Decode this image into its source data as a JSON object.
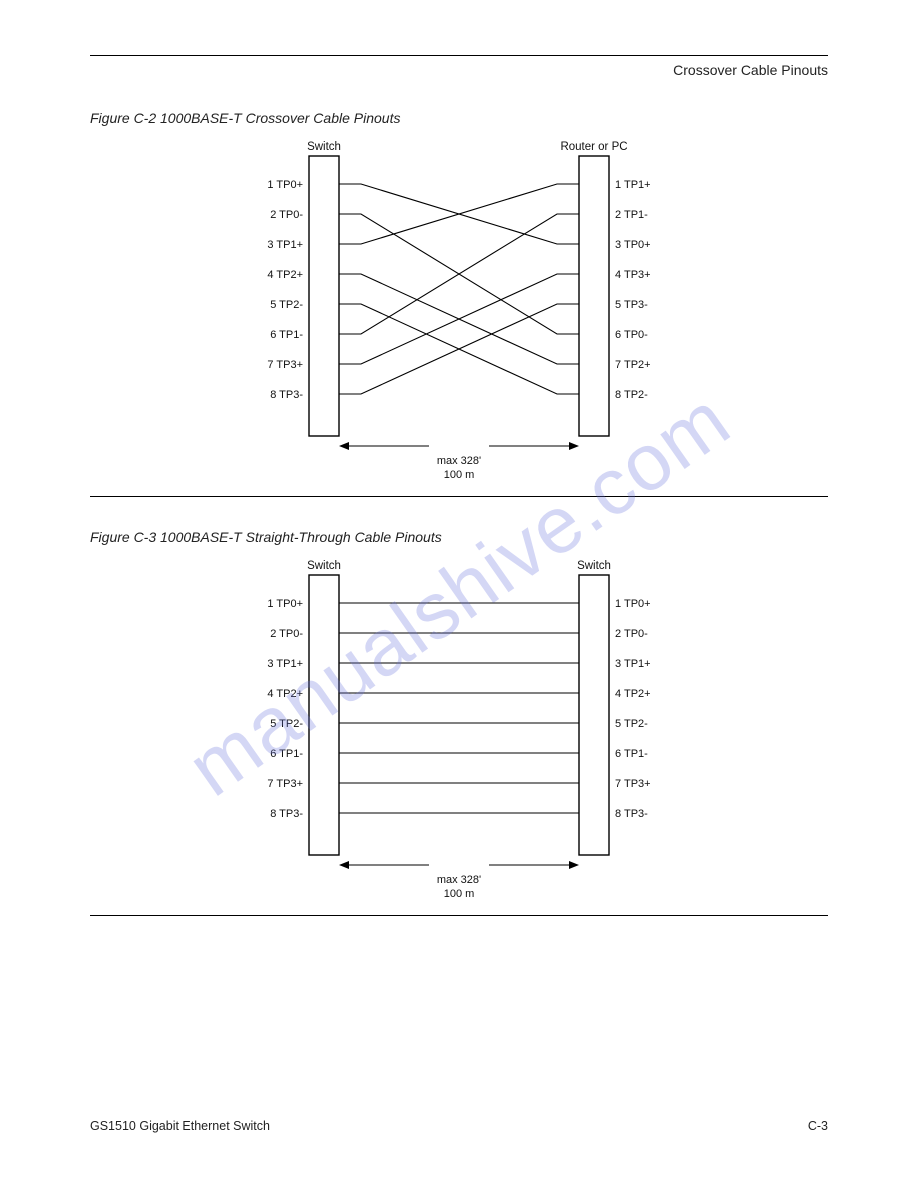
{
  "header": {
    "right": "Crossover Cable Pinouts"
  },
  "figures": [
    {
      "title": "Figure C-2    1000BASE-T Crossover Cable Pinouts",
      "type": "crossover",
      "left_side_label": "Switch",
      "right_side_label": "Router or PC",
      "length_label_left": "max 328'",
      "length_label_right": "100 m",
      "pins_left": [
        {
          "n": 1,
          "label": "TP0+"
        },
        {
          "n": 2,
          "label": "TP0-"
        },
        {
          "n": 3,
          "label": "TP1+"
        },
        {
          "n": 4,
          "label": "TP2+"
        },
        {
          "n": 5,
          "label": "TP2-"
        },
        {
          "n": 6,
          "label": "TP1-"
        },
        {
          "n": 7,
          "label": "TP3+"
        },
        {
          "n": 8,
          "label": "TP3-"
        }
      ],
      "pins_right": [
        {
          "n": 1,
          "label": "TP1+"
        },
        {
          "n": 2,
          "label": "TP1-"
        },
        {
          "n": 3,
          "label": "TP0+"
        },
        {
          "n": 4,
          "label": "TP3+"
        },
        {
          "n": 5,
          "label": "TP3-"
        },
        {
          "n": 6,
          "label": "TP0-"
        },
        {
          "n": 7,
          "label": "TP2+"
        },
        {
          "n": 8,
          "label": "TP2-"
        }
      ],
      "connections": [
        [
          1,
          3
        ],
        [
          2,
          6
        ],
        [
          3,
          1
        ],
        [
          4,
          7
        ],
        [
          5,
          8
        ],
        [
          6,
          2
        ],
        [
          7,
          4
        ],
        [
          8,
          5
        ]
      ],
      "stroke": "#000000",
      "connector_fill": "#ffffff",
      "connector_stroke": "#000000",
      "block_w": 30,
      "block_h": 280,
      "gap": 240,
      "pin_spacing": 30,
      "line_width": 1.1
    },
    {
      "title": "Figure C-3    1000BASE-T Straight-Through Cable Pinouts",
      "type": "straight",
      "left_side_label": "Switch",
      "right_side_label": "Switch",
      "length_label_left": "max 328'",
      "length_label_right": "100 m",
      "pins_left": [
        {
          "n": 1,
          "label": "TP0+"
        },
        {
          "n": 2,
          "label": "TP0-"
        },
        {
          "n": 3,
          "label": "TP1+"
        },
        {
          "n": 4,
          "label": "TP2+"
        },
        {
          "n": 5,
          "label": "TP2-"
        },
        {
          "n": 6,
          "label": "TP1-"
        },
        {
          "n": 7,
          "label": "TP3+"
        },
        {
          "n": 8,
          "label": "TP3-"
        }
      ],
      "pins_right": [
        {
          "n": 1,
          "label": "TP0+"
        },
        {
          "n": 2,
          "label": "TP0-"
        },
        {
          "n": 3,
          "label": "TP1+"
        },
        {
          "n": 4,
          "label": "TP2+"
        },
        {
          "n": 5,
          "label": "TP2-"
        },
        {
          "n": 6,
          "label": "TP1-"
        },
        {
          "n": 7,
          "label": "TP3+"
        },
        {
          "n": 8,
          "label": "TP3-"
        }
      ],
      "connections": [
        [
          1,
          1
        ],
        [
          2,
          2
        ],
        [
          3,
          3
        ],
        [
          4,
          4
        ],
        [
          5,
          5
        ],
        [
          6,
          6
        ],
        [
          7,
          7
        ],
        [
          8,
          8
        ]
      ],
      "stroke": "#000000",
      "connector_fill": "#ffffff",
      "connector_stroke": "#000000",
      "block_w": 30,
      "block_h": 280,
      "gap": 240,
      "pin_spacing": 30,
      "line_width": 1.1
    }
  ],
  "watermark": "manualshive.com",
  "footer": {
    "left": "GS1510 Gigabit Ethernet Switch",
    "right": "C-3"
  }
}
